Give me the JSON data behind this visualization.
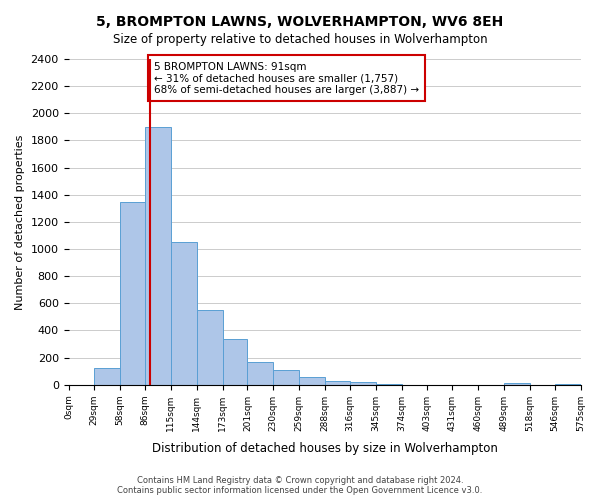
{
  "title": "5, BROMPTON LAWNS, WOLVERHAMPTON, WV6 8EH",
  "subtitle": "Size of property relative to detached houses in Wolverhampton",
  "xlabel": "Distribution of detached houses by size in Wolverhampton",
  "ylabel": "Number of detached properties",
  "bar_edges": [
    0,
    29,
    58,
    86,
    115,
    144,
    173,
    201,
    230,
    259,
    288,
    316,
    345,
    374,
    403,
    431,
    460,
    489,
    518,
    546,
    575
  ],
  "bar_heights": [
    0,
    125,
    1350,
    1900,
    1050,
    550,
    340,
    165,
    110,
    60,
    30,
    20,
    5,
    2,
    0,
    0,
    0,
    15,
    0,
    5
  ],
  "bar_color": "#aec6e8",
  "bar_edge_color": "#5a9fd4",
  "property_value": 91,
  "property_line_color": "#cc0000",
  "annotation_text": "5 BROMPTON LAWNS: 91sqm\n← 31% of detached houses are smaller (1,757)\n68% of semi-detached houses are larger (3,887) →",
  "annotation_box_color": "#ffffff",
  "annotation_box_edge_color": "#cc0000",
  "ylim": [
    0,
    2400
  ],
  "yticks": [
    0,
    200,
    400,
    600,
    800,
    1000,
    1200,
    1400,
    1600,
    1800,
    2000,
    2200,
    2400
  ],
  "tick_labels": [
    "0sqm",
    "29sqm",
    "58sqm",
    "86sqm",
    "115sqm",
    "144sqm",
    "173sqm",
    "201sqm",
    "230sqm",
    "259sqm",
    "288sqm",
    "316sqm",
    "345sqm",
    "374sqm",
    "403sqm",
    "431sqm",
    "460sqm",
    "489sqm",
    "518sqm",
    "546sqm",
    "575sqm"
  ],
  "footer_text": "Contains HM Land Registry data © Crown copyright and database right 2024.\nContains public sector information licensed under the Open Government Licence v3.0.",
  "background_color": "#ffffff",
  "grid_color": "#cccccc"
}
